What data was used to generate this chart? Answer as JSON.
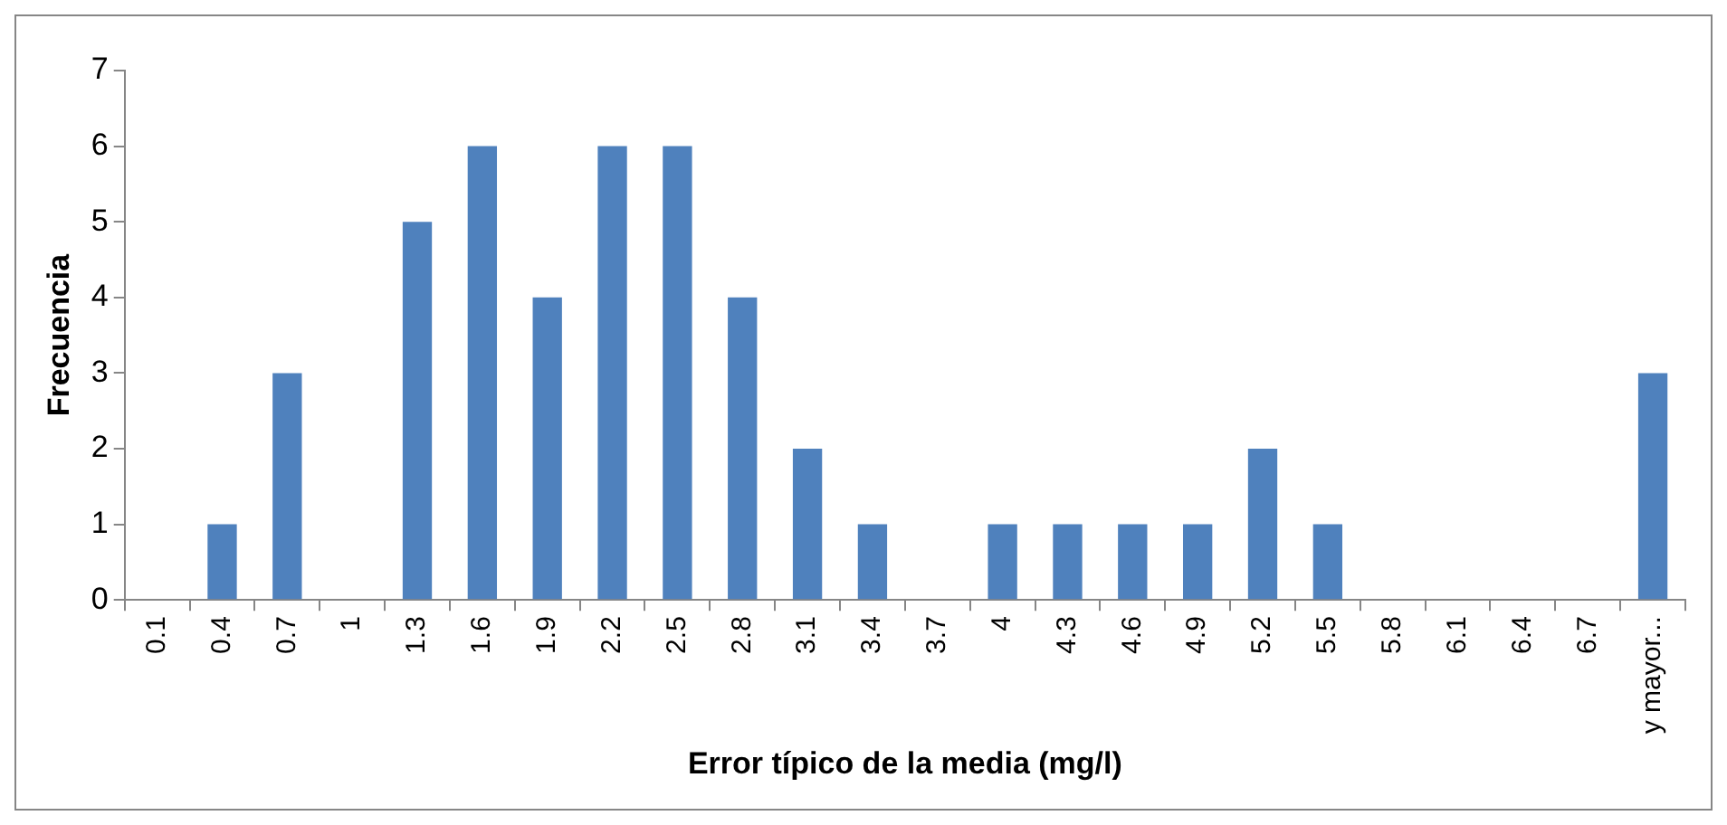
{
  "chart_data": {
    "type": "bar",
    "xlabel": "Error típico de la media (mg/l)",
    "ylabel": "Frecuencia",
    "categories": [
      "0.1",
      "0.4",
      "0.7",
      "1",
      "1.3",
      "1.6",
      "1.9",
      "2.2",
      "2.5",
      "2.8",
      "3.1",
      "3.4",
      "3.7",
      "4",
      "4.3",
      "4.6",
      "4.9",
      "5.2",
      "5.5",
      "5.8",
      "6.1",
      "6.4",
      "6.7",
      "y mayor..."
    ],
    "values": [
      0,
      1,
      3,
      0,
      5,
      6,
      4,
      6,
      6,
      4,
      2,
      1,
      0,
      1,
      1,
      1,
      1,
      2,
      1,
      0,
      0,
      0,
      0,
      3
    ],
    "color": "#4f81bd",
    "ylim": [
      0,
      7
    ],
    "yticks": [
      0,
      1,
      2,
      3,
      4,
      5,
      6,
      7
    ],
    "grid": false,
    "legend": false
  }
}
